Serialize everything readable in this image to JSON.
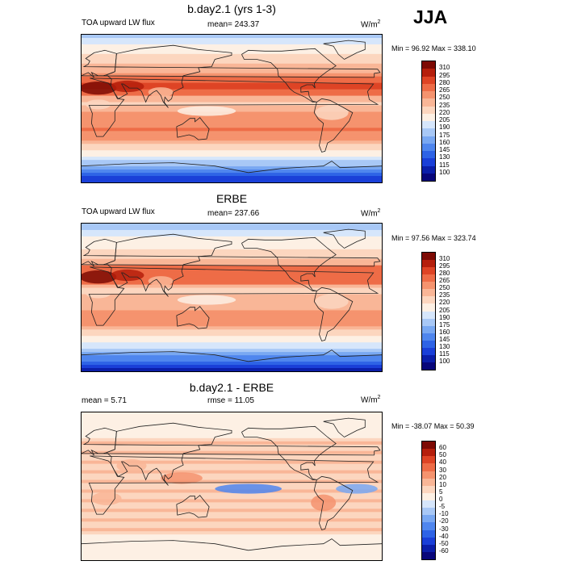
{
  "season": "JJA",
  "panels": [
    {
      "title": "b.day2.1 (yrs 1-3)",
      "left": "TOA upward LW flux",
      "center": "mean= 243.37",
      "units": "W/m",
      "units_sup": "2",
      "minmax": "Min =  96.92 Max = 338.10"
    },
    {
      "title": "ERBE",
      "left": "TOA upward LW flux",
      "center": "mean= 237.66",
      "units": "W/m",
      "units_sup": "2",
      "minmax": "Min =  97.56 Max = 323.74"
    },
    {
      "title": "b.day2.1 - ERBE",
      "left": "mean =   5.71",
      "center": "rmse =  11.05",
      "units": "W/m",
      "units_sup": "2",
      "minmax": "Min = -38.07 Max =  50.39"
    }
  ],
  "chart_data": [
    {
      "type": "heatmap",
      "title": "b.day2.1 (yrs 1-3)",
      "field": "TOA upward LW flux",
      "units": "W/m2",
      "mean": 243.37,
      "min": 96.92,
      "max": 338.1,
      "colorbar_levels": [
        100,
        115,
        130,
        145,
        160,
        175,
        190,
        205,
        220,
        235,
        250,
        265,
        280,
        295,
        310
      ],
      "colorbar_colors": [
        "#08067a",
        "#0b1ea9",
        "#1a3fd8",
        "#2e63e6",
        "#4f86ee",
        "#79a8f2",
        "#a8c8f6",
        "#d6e6fb",
        "#fdf0e4",
        "#fcd6bf",
        "#f9b697",
        "#f5936e",
        "#ee6c47",
        "#de4425",
        "#b51f0c",
        "#7d0a04"
      ]
    },
    {
      "type": "heatmap",
      "title": "ERBE",
      "field": "TOA upward LW flux",
      "units": "W/m2",
      "mean": 237.66,
      "min": 97.56,
      "max": 323.74,
      "colorbar_levels": [
        100,
        115,
        130,
        145,
        160,
        175,
        190,
        205,
        220,
        235,
        250,
        265,
        280,
        295,
        310
      ],
      "colorbar_colors": [
        "#08067a",
        "#0b1ea9",
        "#1a3fd8",
        "#2e63e6",
        "#4f86ee",
        "#79a8f2",
        "#a8c8f6",
        "#d6e6fb",
        "#fdf0e4",
        "#fcd6bf",
        "#f9b697",
        "#f5936e",
        "#ee6c47",
        "#de4425",
        "#b51f0c",
        "#7d0a04"
      ]
    },
    {
      "type": "heatmap",
      "title": "b.day2.1 - ERBE",
      "units": "W/m2",
      "mean": 5.71,
      "rmse": 11.05,
      "min": -38.07,
      "max": 50.39,
      "colorbar_levels": [
        -60,
        -50,
        -40,
        -30,
        -20,
        -10,
        -5,
        0,
        5,
        10,
        20,
        30,
        40,
        50,
        60
      ],
      "colorbar_colors": [
        "#08067a",
        "#0b1ea9",
        "#1a3fd8",
        "#2e63e6",
        "#4f86ee",
        "#79a8f2",
        "#a8c8f6",
        "#d6e6fb",
        "#fdf0e4",
        "#fcd6bf",
        "#f9b697",
        "#f5936e",
        "#ee6c47",
        "#de4425",
        "#b51f0c",
        "#7d0a04"
      ]
    }
  ]
}
